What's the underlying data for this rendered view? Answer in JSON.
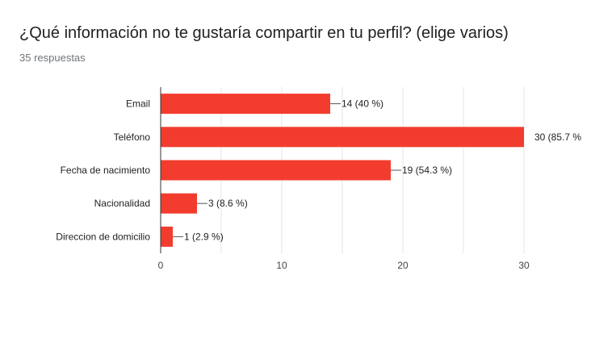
{
  "header": {
    "title": "¿Qué información no te gustaría compartir en tu perfil? (elige varios)",
    "responses": "35 respuestas"
  },
  "colors": {
    "bar": "#f23c2e",
    "grid": "#e6e6e6",
    "axis": "#333333"
  },
  "chart_data": {
    "type": "bar",
    "orientation": "horizontal",
    "categories": [
      "Email",
      "Teléfono",
      "Fecha de nacimiento",
      "Nacionalidad",
      "Direccion de domicilio"
    ],
    "values": [
      14,
      30,
      19,
      3,
      1
    ],
    "data_labels": [
      "14 (40 %)",
      "30 (85.7 %",
      "19 (54.3 %)",
      "3 (8.6 %)",
      "1 (2.9 %)"
    ],
    "xlim": [
      0,
      30
    ],
    "xticks": [
      0,
      10,
      20,
      30
    ],
    "grid": true
  }
}
